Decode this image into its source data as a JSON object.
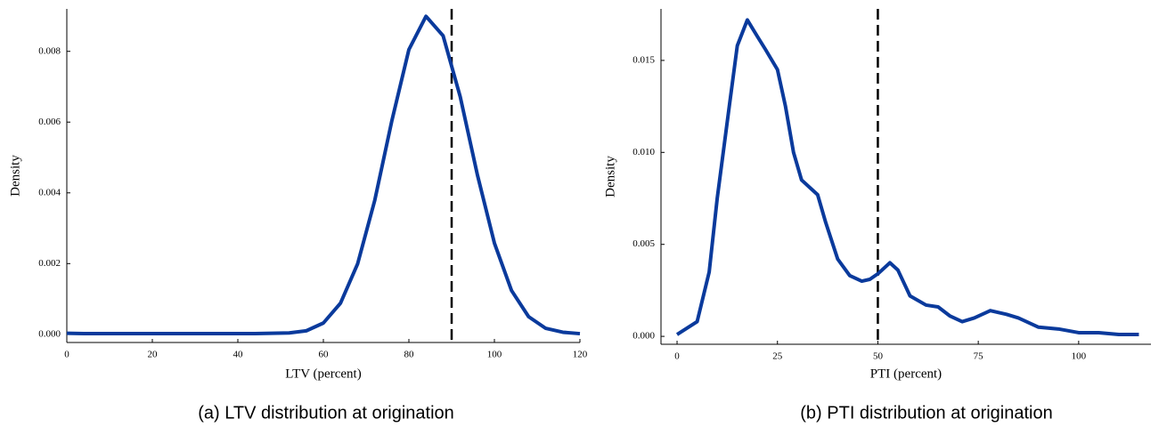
{
  "chart_data": [
    {
      "type": "line",
      "caption": "(a) LTV distribution at origination",
      "xlabel": "LTV (percent)",
      "ylabel": "Density",
      "x": [
        0,
        4,
        8,
        12,
        16,
        20,
        24,
        28,
        32,
        36,
        40,
        44,
        48,
        52,
        56,
        60,
        64,
        68,
        72,
        76,
        80,
        84,
        88,
        92,
        96,
        100,
        104,
        108,
        112,
        116,
        120
      ],
      "series": [
        {
          "color": "#0a3a9c",
          "values": [
            3e-05,
            2e-05,
            2e-05,
            2e-05,
            2e-05,
            2e-05,
            2e-05,
            2e-05,
            2e-05,
            2e-05,
            2e-05,
            2e-05,
            3e-05,
            4e-05,
            0.0001,
            0.00032,
            0.00088,
            0.00199,
            0.00378,
            0.00603,
            0.00805,
            0.00899,
            0.00844,
            0.00672,
            0.00452,
            0.00258,
            0.00124,
            0.0005,
            0.00017,
            6e-05,
            2e-05
          ]
        }
      ],
      "vline": 90,
      "xlim": [
        0,
        120
      ],
      "xticks": [
        0,
        20,
        40,
        60,
        80,
        100,
        120
      ],
      "ylim": [
        -0.00023,
        0.0092
      ],
      "yticks": [
        {
          "value": 0,
          "label": "0.000"
        },
        {
          "value": 0.002,
          "label": "0.002"
        },
        {
          "value": 0.004,
          "label": "0.004"
        },
        {
          "value": 0.006,
          "label": "0.006"
        },
        {
          "value": 0.008,
          "label": "0.008"
        }
      ]
    },
    {
      "type": "line",
      "caption": "(b) PTI distribution at origination",
      "xlabel": "PTI (percent)",
      "ylabel": "Density",
      "x": [
        0,
        5,
        8,
        10,
        13,
        15,
        17.5,
        20,
        22,
        25,
        27,
        29,
        31,
        33,
        35,
        37,
        40,
        43,
        46,
        48,
        50,
        53,
        55,
        58,
        62,
        65,
        68,
        71,
        74,
        78,
        82,
        85,
        90,
        95,
        100,
        105,
        110,
        115
      ],
      "series": [
        {
          "color": "#0a3a9c",
          "values": [
            0.0001,
            0.0008,
            0.0035,
            0.0075,
            0.0125,
            0.0158,
            0.0172,
            0.0163,
            0.0156,
            0.0145,
            0.0125,
            0.01,
            0.0085,
            0.0081,
            0.0077,
            0.0062,
            0.0042,
            0.0033,
            0.003,
            0.0031,
            0.0034,
            0.004,
            0.0036,
            0.0022,
            0.0017,
            0.0016,
            0.0011,
            0.0008,
            0.001,
            0.0014,
            0.0012,
            0.001,
            0.0005,
            0.0004,
            0.0002,
            0.0002,
            0.0001,
            0.0001
          ]
        }
      ],
      "vline": 50,
      "xlim": [
        -4,
        118
      ],
      "xticks": [
        0,
        25,
        50,
        75,
        100
      ],
      "ylim": [
        -0.00043,
        0.0178
      ],
      "yticks": [
        {
          "value": 0,
          "label": "0.000"
        },
        {
          "value": 0.005,
          "label": "0.005"
        },
        {
          "value": 0.01,
          "label": "0.010"
        },
        {
          "value": 0.015,
          "label": "0.015"
        }
      ]
    }
  ]
}
